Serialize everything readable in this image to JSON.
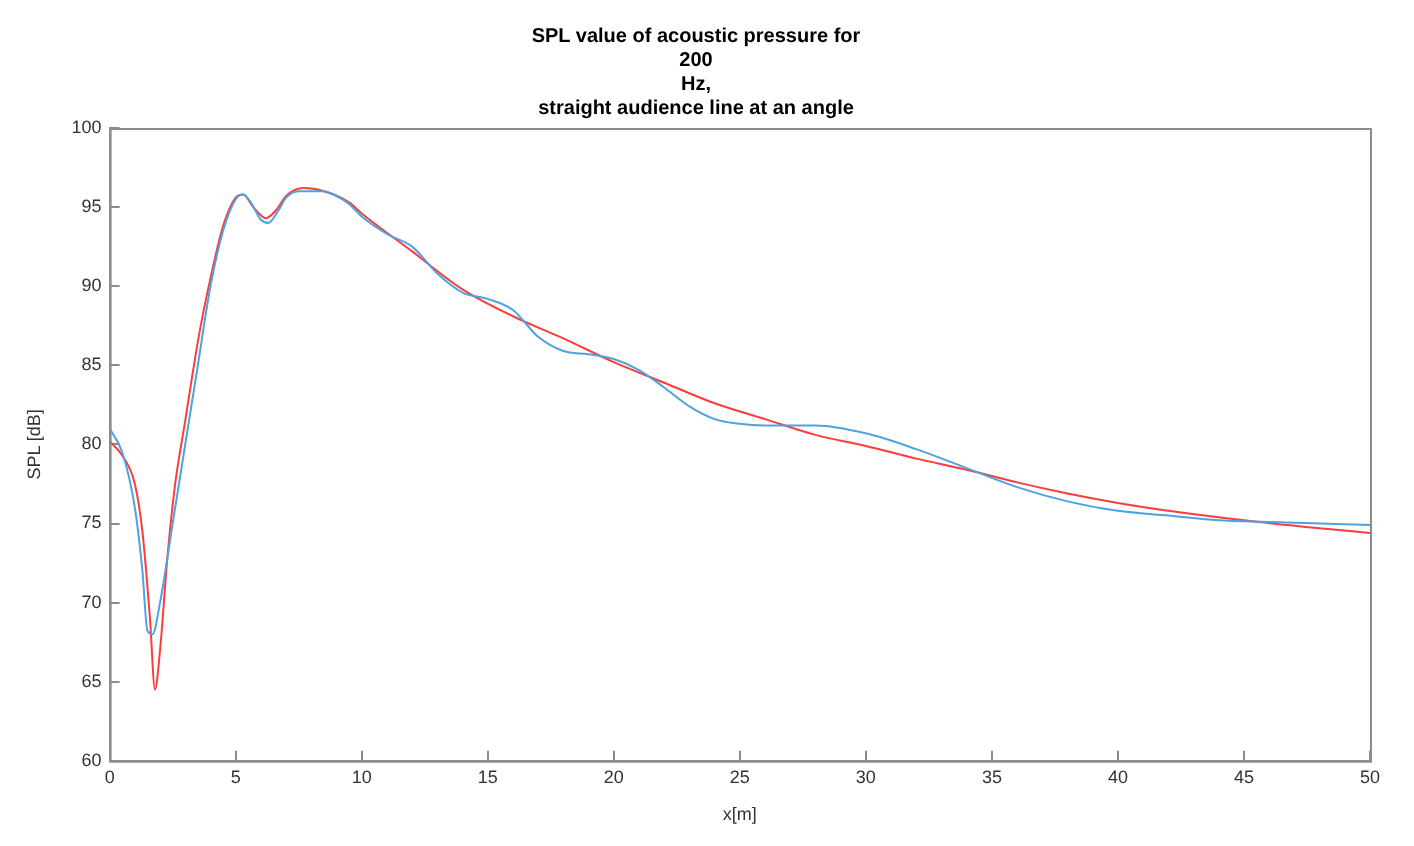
{
  "chart_data": {
    "type": "line",
    "title": "SPL value of acoustic pressure for\n200\nHz,\nstraight audience line at an angle",
    "xlabel": "x[m]",
    "ylabel": "SPL [dB]",
    "xlim": [
      0,
      50
    ],
    "xticks": [
      0,
      5,
      10,
      15,
      20,
      25,
      30,
      35,
      40,
      45,
      50
    ],
    "ylim": [
      60,
      100
    ],
    "yticks": [
      60,
      65,
      70,
      75,
      80,
      85,
      90,
      95,
      100
    ],
    "grid": false,
    "legend": false,
    "marker": "none",
    "line_style": "solid",
    "series": [
      {
        "color": "#4da3e0",
        "x": [
          0,
          0.5,
          1,
          1.3,
          1.5,
          1.7,
          2,
          2.5,
          3,
          3.5,
          4,
          4.5,
          5,
          5.3,
          5.6,
          6,
          6.3,
          6.7,
          7,
          7.5,
          8,
          8.5,
          9,
          9.5,
          10,
          11,
          12,
          13,
          14,
          15,
          16,
          17,
          18,
          19,
          20,
          21,
          22,
          23,
          24,
          25,
          26,
          28,
          30,
          32,
          34,
          36,
          38,
          40,
          42,
          44,
          46,
          48,
          50
        ],
        "values": [
          81,
          79.5,
          76,
          72,
          68.2,
          68,
          70,
          75,
          80,
          85,
          90,
          93.5,
          95.5,
          95.8,
          95.3,
          94.2,
          94,
          94.8,
          95.6,
          96,
          96,
          96,
          95.7,
          95.2,
          94.4,
          93.3,
          92.5,
          90.8,
          89.6,
          89.2,
          88.5,
          86.8,
          85.9,
          85.7,
          85.4,
          84.7,
          83.6,
          82.4,
          81.6,
          81.3,
          81.2,
          81.2,
          80.7,
          79.7,
          78.5,
          77.3,
          76.4,
          75.8,
          75.5,
          75.2,
          75.1,
          75,
          74.9
        ]
      },
      {
        "color": "#ff3b3b",
        "x": [
          0,
          0.5,
          1,
          1.3,
          1.6,
          1.8,
          2,
          2.3,
          2.6,
          3,
          3.5,
          4,
          4.5,
          5,
          5.3,
          5.7,
          6.2,
          6.6,
          7,
          7.7,
          8.5,
          9.5,
          10,
          12,
          14,
          16,
          18,
          20,
          22,
          24,
          26,
          28,
          30,
          32,
          34,
          36,
          38,
          40,
          42,
          45,
          48,
          50
        ],
        "values": [
          80.2,
          79.3,
          77.5,
          74.5,
          69,
          64.5,
          67,
          73,
          77.5,
          81.5,
          86.5,
          90.5,
          93.8,
          95.6,
          95.8,
          95,
          94.3,
          94.8,
          95.7,
          96.2,
          96,
          95.3,
          94.6,
          92.2,
          89.8,
          88.1,
          86.7,
          85.2,
          83.9,
          82.6,
          81.6,
          80.6,
          79.9,
          79.1,
          78.4,
          77.6,
          76.9,
          76.3,
          75.8,
          75.2,
          74.7,
          74.4
        ]
      }
    ]
  }
}
